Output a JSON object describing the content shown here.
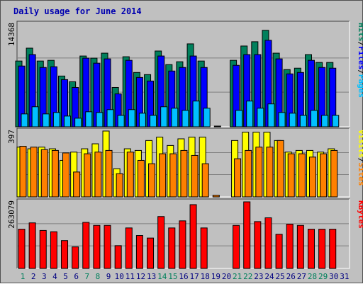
{
  "chart_data": {
    "type": "bar",
    "title": "Daily usage for June 2014",
    "colors": {
      "frame": "#c0c0c0",
      "hits": "#00805c",
      "files": "#0000ff",
      "pages": "#00c0ff",
      "visits": "#ffff00",
      "sites": "#ff8000",
      "kbytes": "#ff0000",
      "weekend_label": "#00805c",
      "weekday_label": "#000080",
      "grid": "#808080"
    },
    "days": [
      "1",
      "2",
      "3",
      "4",
      "5",
      "6",
      "7",
      "8",
      "9",
      "10",
      "11",
      "12",
      "13",
      "14",
      "15",
      "16",
      "17",
      "18",
      "19",
      "20",
      "21",
      "22",
      "23",
      "24",
      "25",
      "26",
      "27",
      "28",
      "29",
      "30",
      "31"
    ],
    "weekend_days": [
      "1",
      "7",
      "8",
      "14",
      "15",
      "21",
      "22",
      "28",
      "29"
    ],
    "panels": [
      {
        "id": "hits-files-pages",
        "ymax_label": "14368",
        "ylim": [
          0,
          14368
        ],
        "right_labels": [
          {
            "text": "Hits",
            "color": "#00805c"
          },
          {
            "text": "Files",
            "color": "#0000ff"
          },
          {
            "text": "Pages",
            "color": "#00c0ff"
          }
        ],
        "separators": [
          "/",
          "/"
        ],
        "series": [
          {
            "name": "Hits",
            "color": "#00805c",
            "values": [
              9200,
              11000,
              9200,
              9300,
              7100,
              6300,
              9900,
              9600,
              10300,
              5500,
              9800,
              7600,
              7300,
              10600,
              8700,
              9100,
              11600,
              9200,
              0,
              0,
              9300,
              11300,
              11900,
              13500,
              10300,
              8000,
              8200,
              10100,
              9000,
              9000,
              0
            ]
          },
          {
            "name": "Files",
            "color": "#0000ff",
            "values": [
              8500,
              10100,
              8300,
              8400,
              6600,
              5500,
              9600,
              8900,
              9500,
              4600,
              9300,
              6900,
              6400,
              9900,
              7800,
              8300,
              9900,
              8300,
              0,
              0,
              8600,
              10100,
              10100,
              12100,
              9500,
              7400,
              7600,
              9300,
              8300,
              8200,
              0
            ]
          },
          {
            "name": "Pages",
            "color": "#00c0ff",
            "values": [
              1800,
              2800,
              1800,
              2000,
              1500,
              1200,
              2100,
              2000,
              2400,
              1600,
              2400,
              1900,
              1600,
              2800,
              2600,
              2300,
              3600,
              2600,
              100,
              0,
              2300,
              3600,
              2600,
              3200,
              2000,
              1900,
              1600,
              2300,
              1600,
              1600,
              0
            ]
          }
        ]
      },
      {
        "id": "visits-sites",
        "ymax_label": "397",
        "ylim": [
          0,
          397
        ],
        "right_labels": [
          {
            "text": "Visits",
            "color": "#ffff00"
          },
          {
            "text": "Sites",
            "color": "#ff8000"
          }
        ],
        "separators": [
          "/"
        ],
        "series": [
          {
            "name": "Visits",
            "color": "#ffff00",
            "values": [
              300,
              290,
              300,
              290,
              220,
              270,
              290,
              320,
              397,
              170,
              290,
              280,
              340,
              360,
              310,
              350,
              360,
              360,
              0,
              0,
              340,
              390,
              390,
              390,
              340,
              270,
              280,
              280,
              270,
              290,
              0
            ]
          },
          {
            "name": "Sites",
            "color": "#ff8000",
            "values": [
              305,
              300,
              285,
              280,
              265,
              150,
              260,
              270,
              280,
              140,
              270,
              220,
              200,
              260,
              260,
              280,
              250,
              200,
              10,
              0,
              230,
              280,
              300,
              300,
              340,
              260,
              260,
              240,
              260,
              280,
              0
            ]
          }
        ]
      },
      {
        "id": "kbytes",
        "ymax_label": "263079",
        "ylim": [
          0,
          263079
        ],
        "right_labels": [
          {
            "text": "KBytes",
            "color": "#ff0000"
          }
        ],
        "separators": [],
        "series": [
          {
            "name": "KBytes",
            "color": "#ff0000",
            "values": [
              155000,
              180000,
              150000,
              145000,
              110000,
              85000,
              182000,
              170000,
              170000,
              90000,
              160000,
              130000,
              120000,
              205000,
              160000,
              188000,
              252000,
              160000,
              0,
              0,
              170000,
              263079,
              185000,
              200000,
              135000,
              175000,
              170000,
              155000,
              155000,
              155000,
              0
            ]
          }
        ]
      }
    ]
  }
}
